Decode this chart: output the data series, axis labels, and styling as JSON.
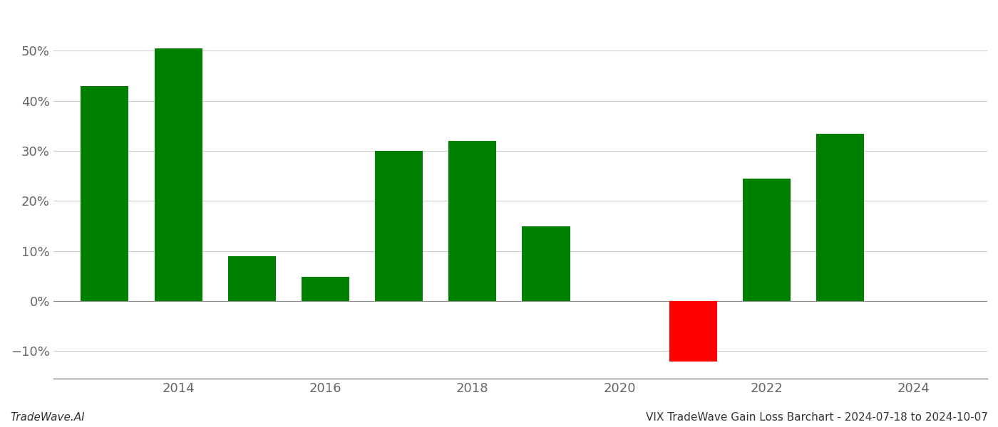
{
  "years": [
    2013,
    2014,
    2015,
    2016,
    2017,
    2018,
    2019,
    2021,
    2022,
    2023
  ],
  "values": [
    0.43,
    0.505,
    0.089,
    0.049,
    0.3,
    0.32,
    0.15,
    -0.12,
    0.244,
    0.334
  ],
  "colors": [
    "#008000",
    "#008000",
    "#008000",
    "#008000",
    "#008000",
    "#008000",
    "#008000",
    "#ff0000",
    "#008000",
    "#008000"
  ],
  "title": "VIX TradeWave Gain Loss Barchart - 2024-07-18 to 2024-10-07",
  "watermark": "TradeWave.AI",
  "ylim": [
    -0.155,
    0.58
  ],
  "yticks": [
    -0.1,
    0.0,
    0.1,
    0.2,
    0.3,
    0.4,
    0.5
  ],
  "ytick_labels": [
    "−10%",
    "0%",
    "10%",
    "20%",
    "30%",
    "40%",
    "50%"
  ],
  "xticks": [
    2014,
    2016,
    2018,
    2020,
    2022,
    2024
  ],
  "xlim": [
    2012.3,
    2025.0
  ],
  "background_color": "#ffffff",
  "grid_color": "#cccccc",
  "bar_width": 0.65
}
